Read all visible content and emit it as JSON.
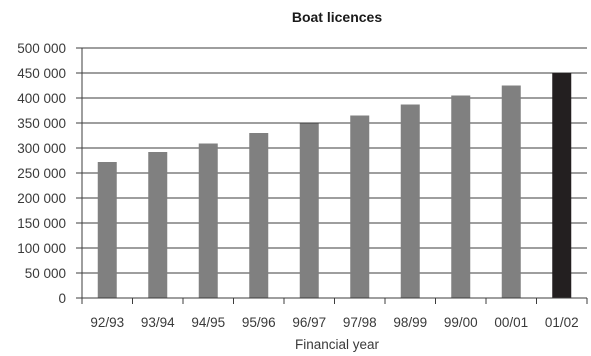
{
  "chart_data": {
    "type": "bar",
    "title": "Boat licences",
    "xlabel": "Financial year",
    "ylabel": "",
    "ylim": [
      0,
      500000
    ],
    "y_ticks": [
      "0",
      "50 000",
      "100 000",
      "150 000",
      "200 000",
      "250 000",
      "300 000",
      "350 000",
      "400 000",
      "450 000",
      "500 000"
    ],
    "y_tick_values": [
      0,
      50000,
      100000,
      150000,
      200000,
      250000,
      300000,
      350000,
      400000,
      450000,
      500000
    ],
    "categories": [
      "92/93",
      "93/94",
      "94/95",
      "95/96",
      "96/97",
      "97/98",
      "98/99",
      "99/00",
      "00/01",
      "01/02"
    ],
    "values": [
      272000,
      292000,
      309000,
      330000,
      349000,
      365000,
      387000,
      405000,
      425000,
      450000
    ],
    "bar_colors": [
      "#808080",
      "#808080",
      "#808080",
      "#808080",
      "#808080",
      "#808080",
      "#808080",
      "#808080",
      "#808080",
      "#231f20"
    ],
    "grid": true,
    "legend": "none"
  }
}
